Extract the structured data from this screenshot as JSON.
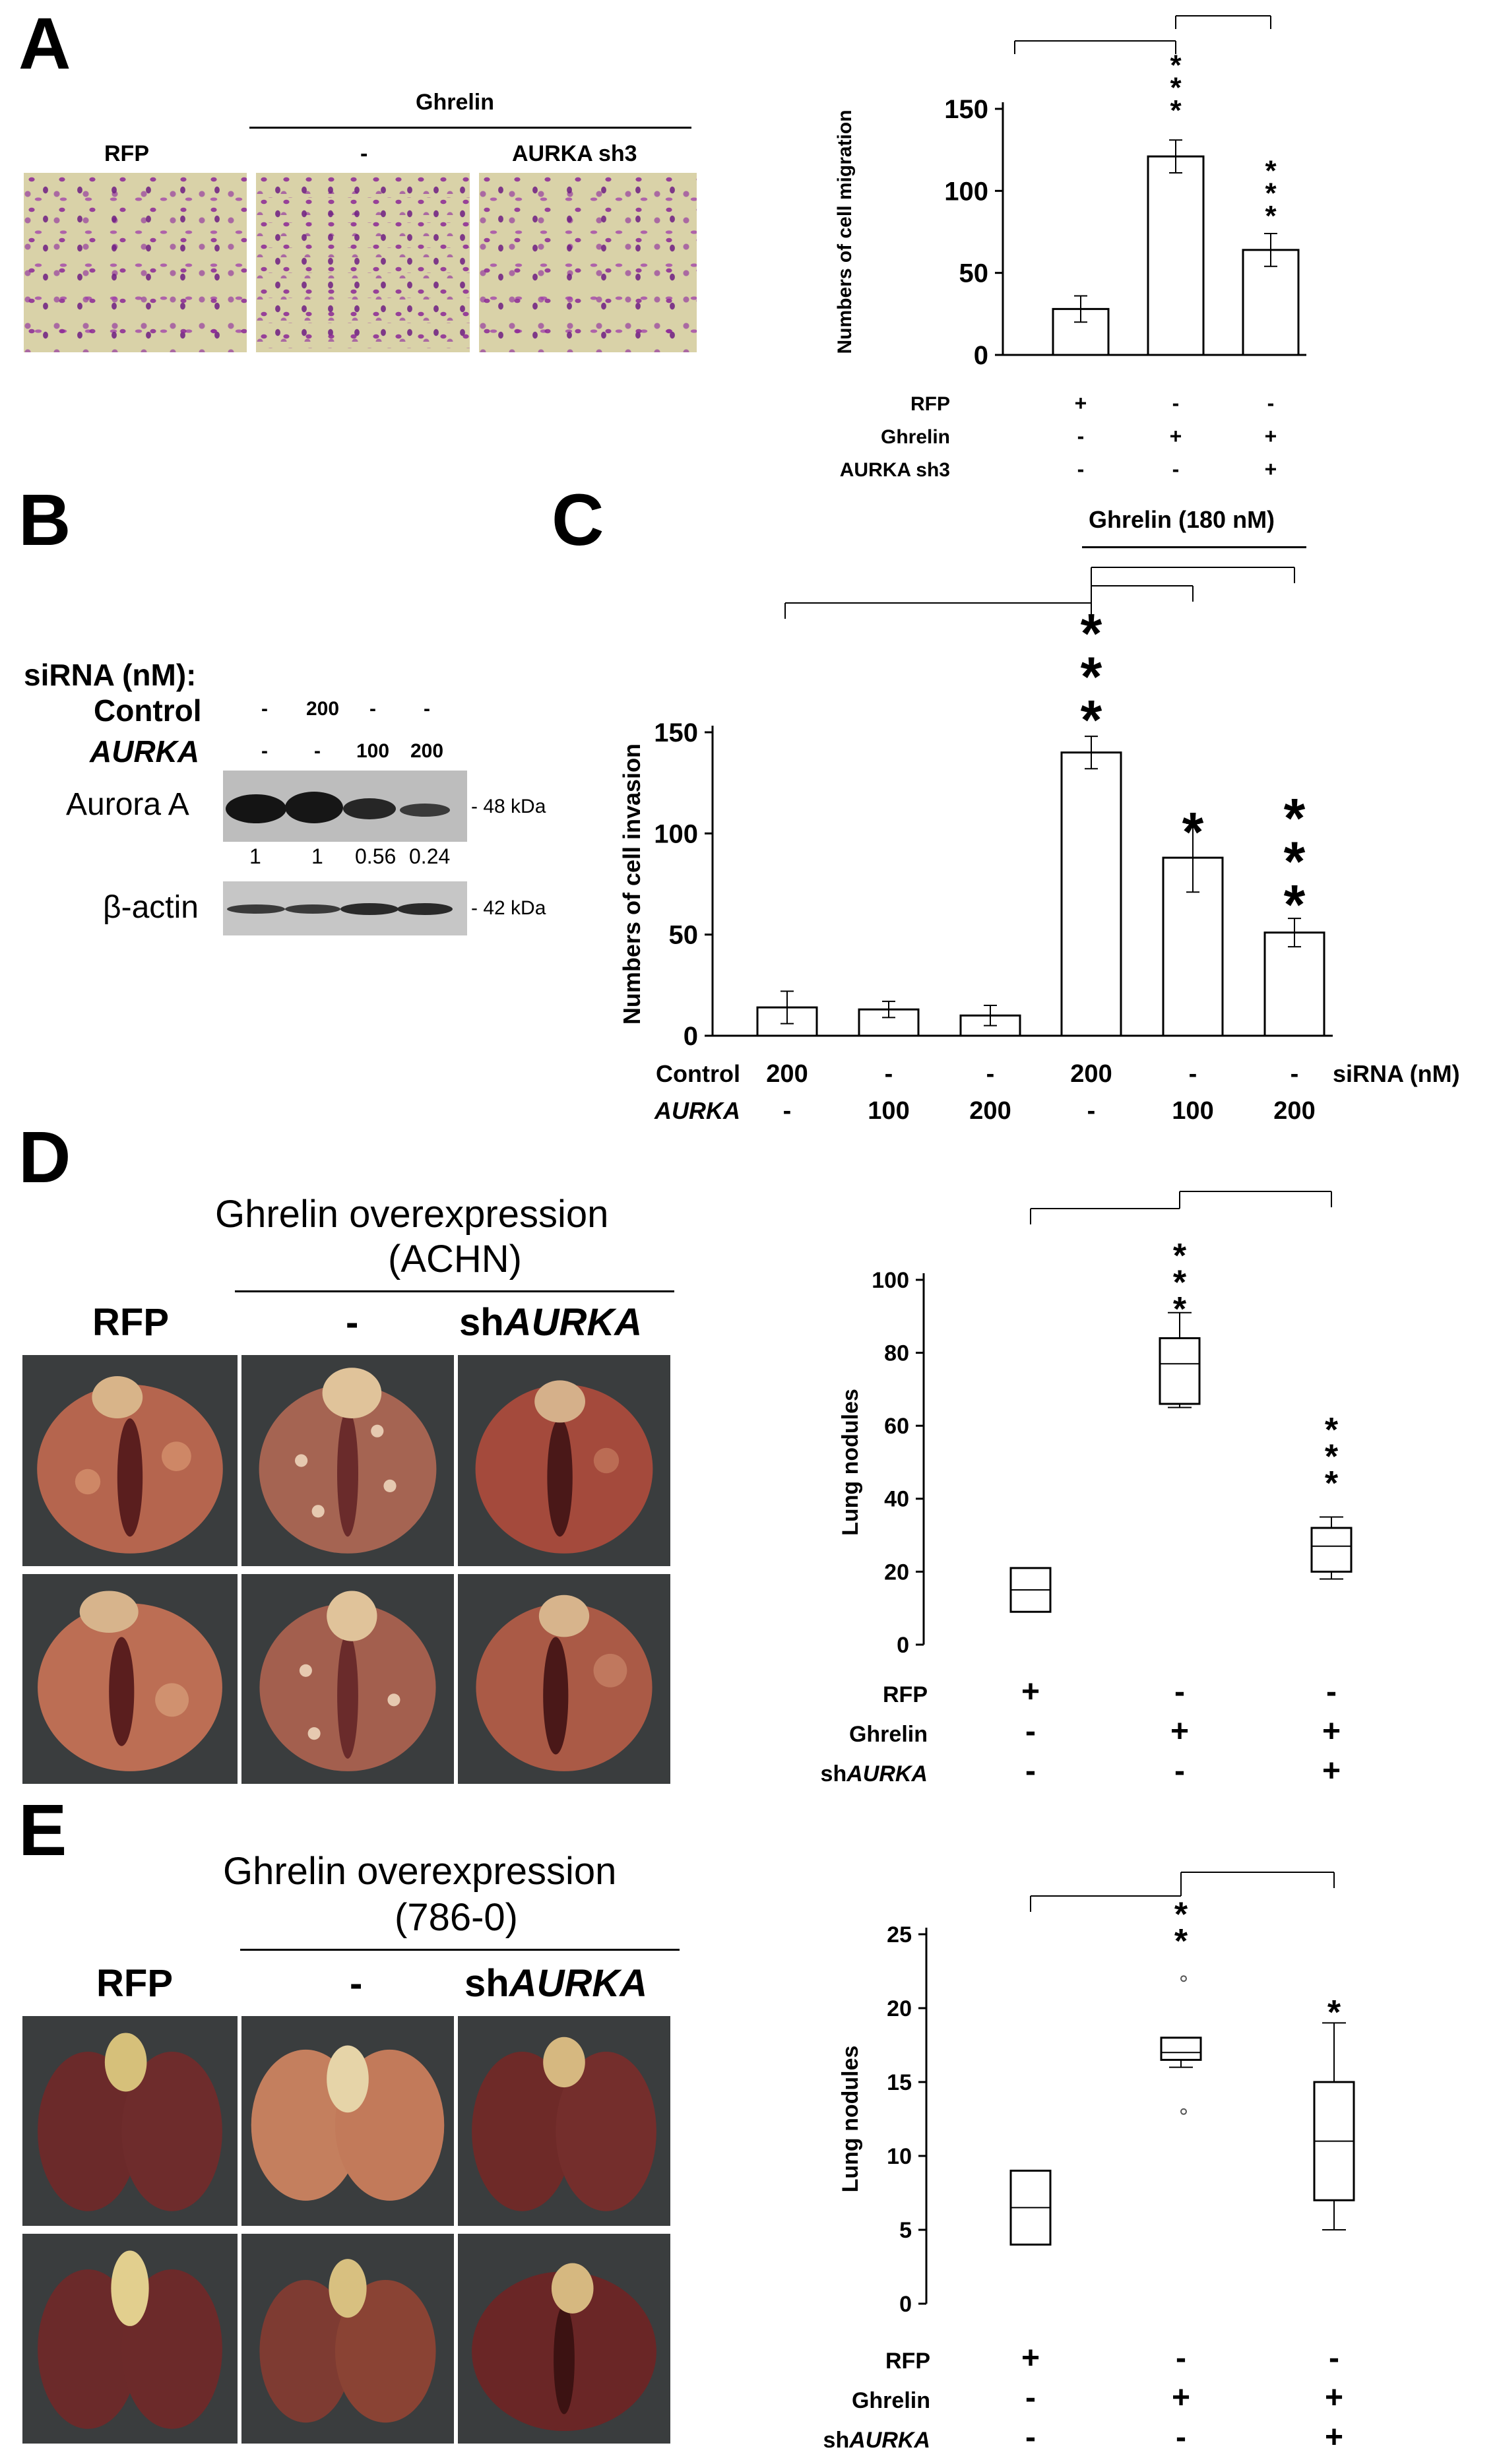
{
  "panels": {
    "A": {
      "label": "A",
      "ghrelin_header": "Ghrelin",
      "image_labels": [
        "RFP",
        "-",
        "AURKA sh3"
      ]
    },
    "B": {
      "label": "B",
      "sirna_label": "siRNA (nM):",
      "row_control": {
        "label": "Control",
        "values": [
          "-",
          "200",
          "-",
          "-"
        ]
      },
      "row_aurka": {
        "label": "AURKA",
        "values": [
          "-",
          "-",
          "100",
          "200"
        ]
      },
      "aurora_label": "Aurora A",
      "aurora_kda": "- 48 kDa",
      "quant": [
        "1",
        "1",
        "0.56",
        "0.24"
      ],
      "actin_label": "β-actin",
      "actin_kda": "- 42 kDa"
    },
    "C": {
      "label": "C",
      "ghrelin_header": "Ghrelin (180 nM)",
      "sirna_unit": "siRNA (nM)"
    },
    "D": {
      "label": "D",
      "title_line1": "Ghrelin overexpression",
      "title_line2": "(ACHN)",
      "image_labels": [
        "RFP",
        "-",
        "sh",
        "AURKA"
      ]
    },
    "E": {
      "label": "E",
      "title_line1": "Ghrelin overexpression",
      "title_line2": "(786-0)",
      "image_labels": [
        "RFP",
        "-",
        "sh",
        "AURKA"
      ]
    }
  },
  "chart_data": [
    {
      "id": "A",
      "type": "bar",
      "categories": [
        "RFP",
        "Ghrelin",
        "Ghrelin + AURKA sh3"
      ],
      "values": [
        28,
        121,
        64
      ],
      "errors": [
        8,
        10,
        10
      ],
      "ylabel": "Numbers of cell migration",
      "ylim": [
        0,
        150
      ],
      "yticks": [
        0,
        50,
        100,
        150
      ],
      "significance": [
        "",
        "***",
        "***"
      ],
      "conditions": [
        {
          "name": "RFP",
          "values": [
            "+",
            "-",
            "-"
          ]
        },
        {
          "name": "Ghrelin",
          "values": [
            "-",
            "+",
            "+"
          ]
        },
        {
          "name": "AURKA sh3",
          "values": [
            "-",
            "-",
            "+"
          ]
        }
      ]
    },
    {
      "id": "C",
      "type": "bar",
      "categories": [
        "1",
        "2",
        "3",
        "4",
        "5",
        "6"
      ],
      "values": [
        14,
        13,
        10,
        140,
        88,
        51
      ],
      "errors": [
        8,
        4,
        5,
        8,
        17,
        7
      ],
      "ylabel": "Numbers of cell invasion",
      "ylim": [
        0,
        150
      ],
      "yticks": [
        0,
        50,
        100,
        150
      ],
      "significance": [
        "",
        "",
        "",
        "***",
        "*",
        "***"
      ],
      "conditions": [
        {
          "name": "Control",
          "values": [
            "200",
            "-",
            "-",
            "200",
            "-",
            "-"
          ]
        },
        {
          "name": "AURKA",
          "values": [
            "-",
            "100",
            "200",
            "-",
            "100",
            "200"
          ]
        }
      ]
    },
    {
      "id": "D",
      "type": "box",
      "categories": [
        "RFP",
        "Ghrelin",
        "Ghrelin + shAURKA"
      ],
      "boxes": [
        {
          "min": 9,
          "q1": 9,
          "median": 15,
          "q3": 21,
          "max": 21
        },
        {
          "min": 65,
          "q1": 66,
          "median": 77,
          "q3": 84,
          "max": 91
        },
        {
          "min": 18,
          "q1": 20,
          "median": 27,
          "q3": 32,
          "max": 35
        }
      ],
      "ylabel": "Lung nodules",
      "ylim": [
        0,
        100
      ],
      "yticks": [
        0,
        20,
        40,
        60,
        80,
        100
      ],
      "significance": [
        "",
        "***",
        "***"
      ],
      "conditions": [
        {
          "name": "RFP",
          "values": [
            "+",
            "-",
            "-"
          ]
        },
        {
          "name": "Ghrelin",
          "values": [
            "-",
            "+",
            "+"
          ]
        },
        {
          "name": "shAURKA",
          "values": [
            "-",
            "-",
            "+"
          ]
        }
      ]
    },
    {
      "id": "E",
      "type": "box",
      "categories": [
        "RFP",
        "Ghrelin",
        "Ghrelin + shAURKA"
      ],
      "boxes": [
        {
          "min": 4,
          "q1": 4,
          "median": 6.5,
          "q3": 9,
          "max": 9
        },
        {
          "min": 16,
          "q1": 16.5,
          "median": 17,
          "q3": 18,
          "max": 18
        },
        {
          "min": 5,
          "q1": 7,
          "median": 11,
          "q3": 15,
          "max": 19
        }
      ],
      "outliers": [
        [],
        [
          22,
          13
        ],
        []
      ],
      "ylabel": "Lung nodules",
      "ylim": [
        0,
        25
      ],
      "yticks": [
        0,
        5,
        10,
        15,
        20,
        25
      ],
      "significance": [
        "",
        "**",
        "*"
      ],
      "conditions": [
        {
          "name": "RFP",
          "values": [
            "+",
            "-",
            "-"
          ]
        },
        {
          "name": "Ghrelin",
          "values": [
            "-",
            "+",
            "+"
          ]
        },
        {
          "name": "shAURKA",
          "values": [
            "-",
            "-",
            "+"
          ]
        }
      ]
    }
  ]
}
